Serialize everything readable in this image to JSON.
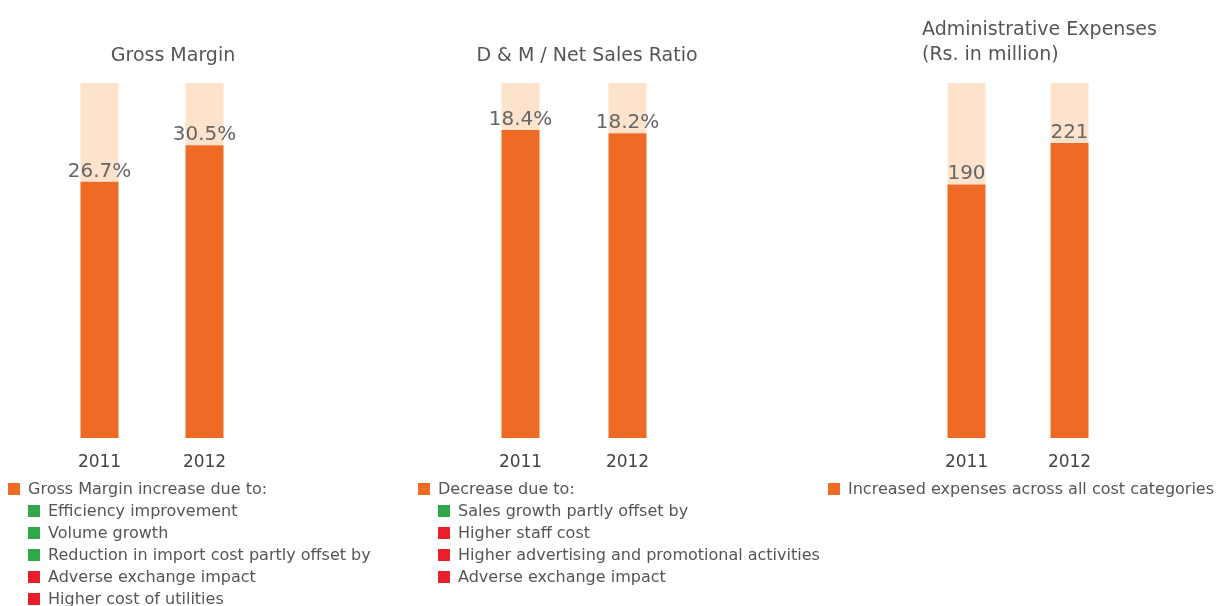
{
  "chart_data": [
    {
      "type": "bar",
      "title": "Gross Margin",
      "categories": [
        "2011",
        "2012"
      ],
      "stacked": true,
      "ylim": [
        0,
        37
      ],
      "series": [
        {
          "color": "#ef6b25",
          "values": [
            26.7,
            30.5
          ],
          "value_labels": [
            "26.7%",
            "30.5%"
          ]
        },
        {
          "color": "#fde2cc",
          "values": [
            10.3,
            6.5
          ]
        }
      ],
      "annotations": [
        "Gross Margin increase due to:",
        "Efficiency improvement",
        "Volume growth",
        "Reduction in import cost partly offset by",
        "Adverse exchange impact",
        "Higher cost of utilities"
      ]
    },
    {
      "type": "bar",
      "title": "D & M / Net Sales Ratio",
      "categories": [
        "2011",
        "2012"
      ],
      "stacked": true,
      "ylim": [
        0,
        21.2
      ],
      "series": [
        {
          "color": "#ef6b25",
          "values": [
            18.4,
            18.2
          ],
          "value_labels": [
            "18.4%",
            "18.2%"
          ]
        },
        {
          "color": "#fde2cc",
          "values": [
            2.8,
            3.0
          ]
        }
      ],
      "annotations": [
        "Decrease due to:",
        "Sales growth partly offset by",
        "Higher staff cost",
        "Higher advertising and promotional activities",
        "Adverse exchange impact"
      ]
    },
    {
      "type": "bar",
      "title": "Administrative Expenses\n(Rs. in million)",
      "categories": [
        "2011",
        "2012"
      ],
      "stacked": true,
      "ylim": [
        0,
        266
      ],
      "series": [
        {
          "color": "#ef6b25",
          "values": [
            190,
            221
          ],
          "value_labels": [
            "190",
            "221"
          ]
        },
        {
          "color": "#fde2cc",
          "values": [
            76,
            45
          ]
        }
      ],
      "annotations": [
        "Increased expenses across all cost categories"
      ]
    }
  ]
}
